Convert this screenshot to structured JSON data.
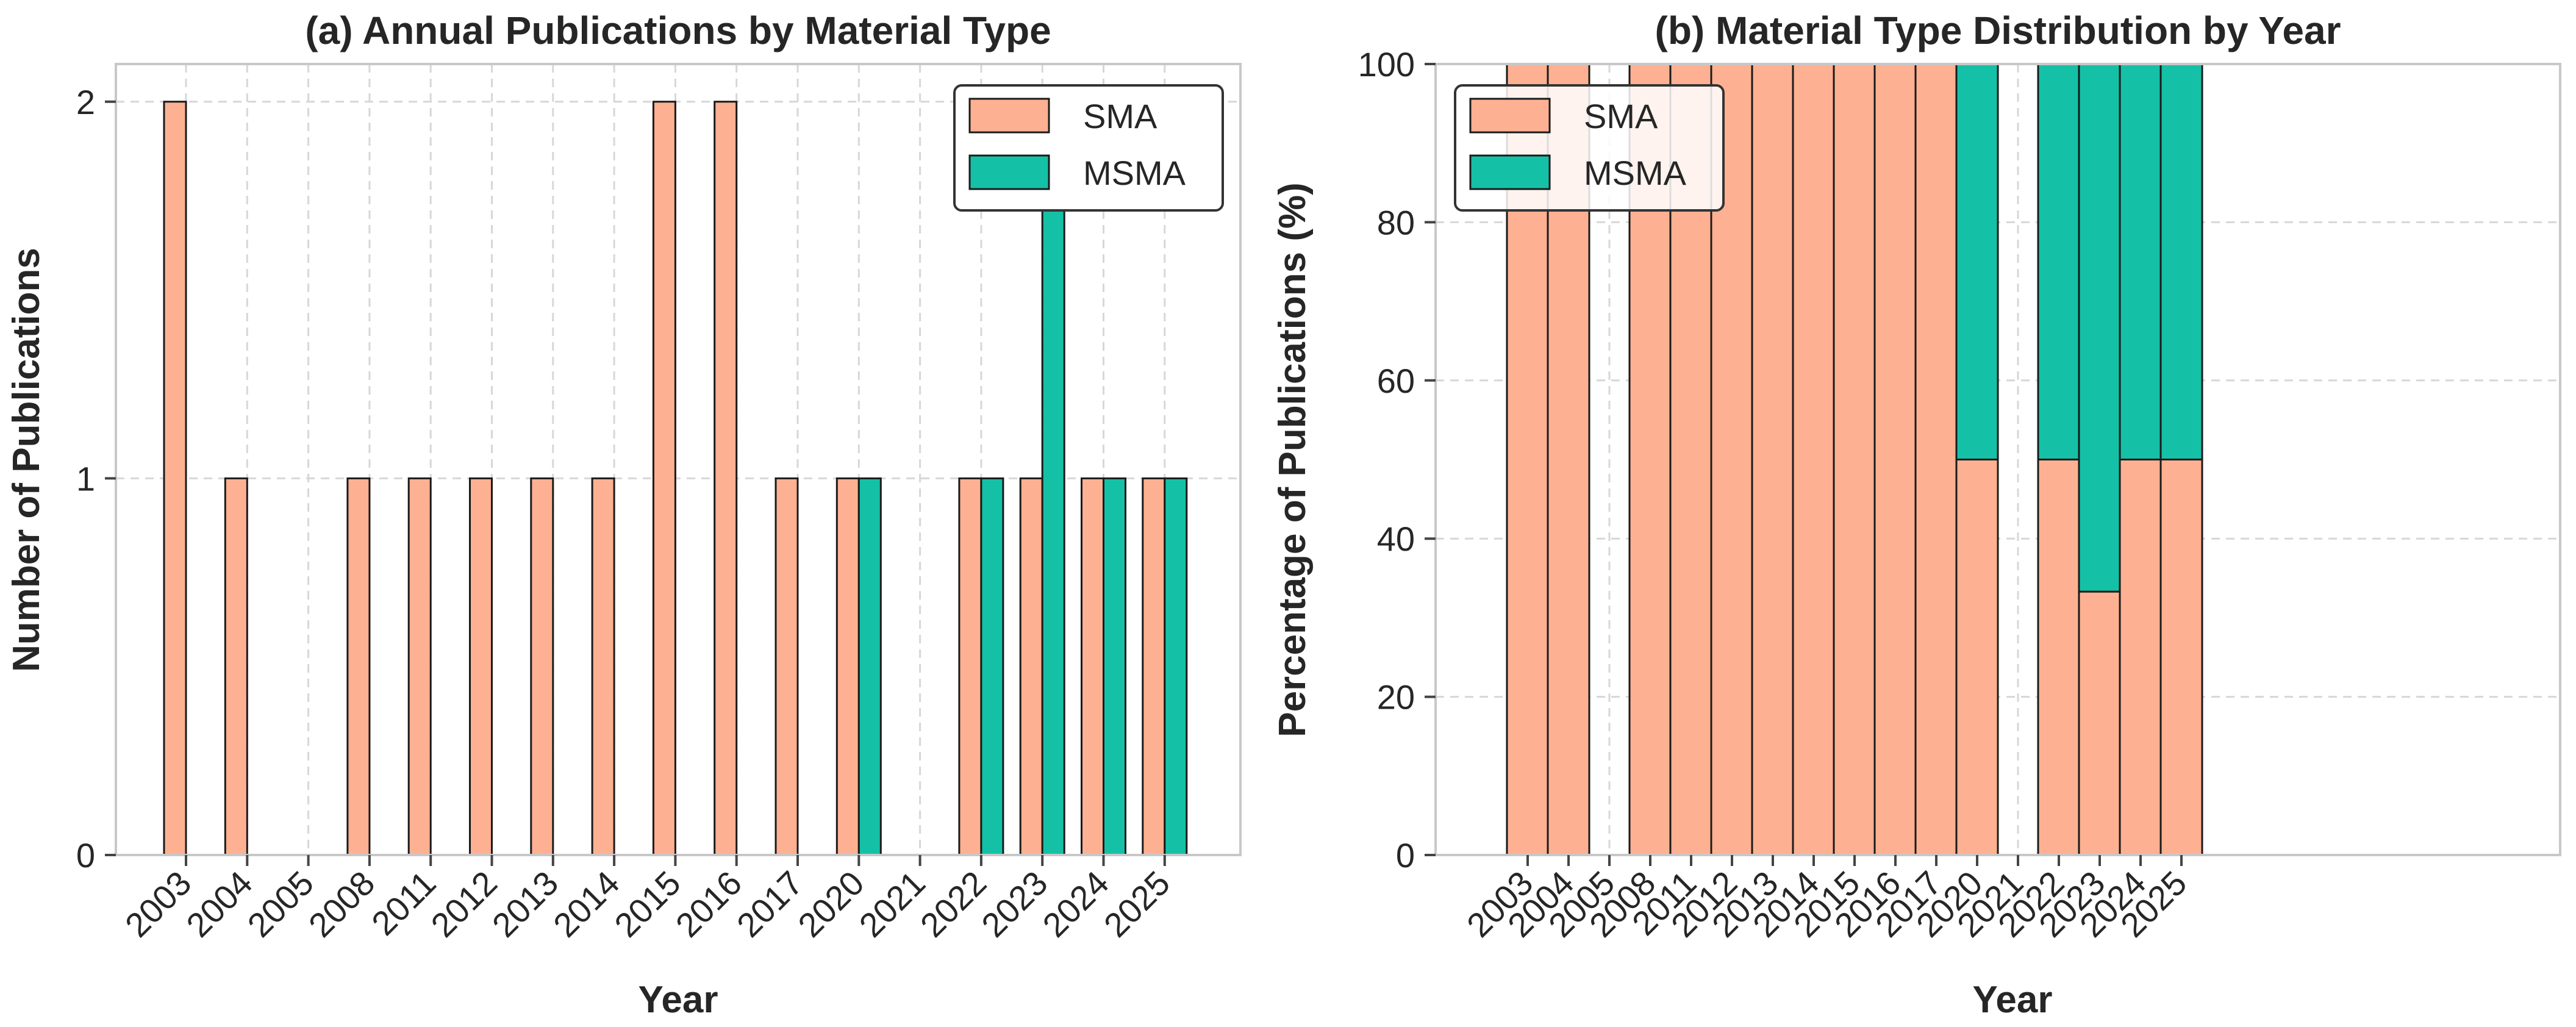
{
  "colors": {
    "sma": "#FDB192",
    "msma": "#14C1A6"
  },
  "legend": [
    "SMA",
    "MSMA"
  ],
  "chart_data": [
    {
      "type": "bar",
      "title": "(a) Annual Publications by Material Type",
      "xlabel": "Year",
      "ylabel": "Number of Publications",
      "ylim": [
        0,
        2.1
      ],
      "yticks": [
        "0",
        "1",
        "2"
      ],
      "categories": [
        "2003",
        "2004",
        "2005",
        "2008",
        "2011",
        "2012",
        "2013",
        "2014",
        "2015",
        "2016",
        "2017",
        "2020",
        "2021",
        "2022",
        "2023",
        "2024",
        "2025"
      ],
      "series": [
        {
          "name": "SMA",
          "values": [
            2,
            1,
            0,
            1,
            1,
            1,
            1,
            1,
            2,
            2,
            1,
            1,
            0,
            1,
            1,
            1,
            1
          ]
        },
        {
          "name": "MSMA",
          "values": [
            0,
            0,
            0,
            0,
            0,
            0,
            0,
            0,
            0,
            0,
            0,
            1,
            0,
            1,
            2,
            1,
            1
          ]
        }
      ],
      "legend_position": "top-right",
      "grid": true
    },
    {
      "type": "bar",
      "stacked": true,
      "title": "(b) Material Type Distribution by Year",
      "xlabel": "Year",
      "ylabel": "Percentage of Publications (%)",
      "ylim": [
        0,
        100
      ],
      "yticks": [
        "0",
        "20",
        "40",
        "60",
        "80",
        "100"
      ],
      "categories": [
        "2003",
        "2004",
        "2005",
        "2008",
        "2011",
        "2012",
        "2013",
        "2014",
        "2015",
        "2016",
        "2017",
        "2020",
        "2021",
        "2022",
        "2023",
        "2024",
        "2025"
      ],
      "series": [
        {
          "name": "SMA",
          "values": [
            100,
            100,
            0,
            100,
            100,
            100,
            100,
            100,
            100,
            100,
            100,
            50,
            0,
            50,
            33.3,
            50,
            50
          ]
        },
        {
          "name": "MSMA",
          "values": [
            0,
            0,
            0,
            0,
            0,
            0,
            0,
            0,
            0,
            0,
            0,
            50,
            0,
            50,
            66.7,
            50,
            50
          ]
        }
      ],
      "legend_position": "top-left",
      "grid": true
    }
  ]
}
